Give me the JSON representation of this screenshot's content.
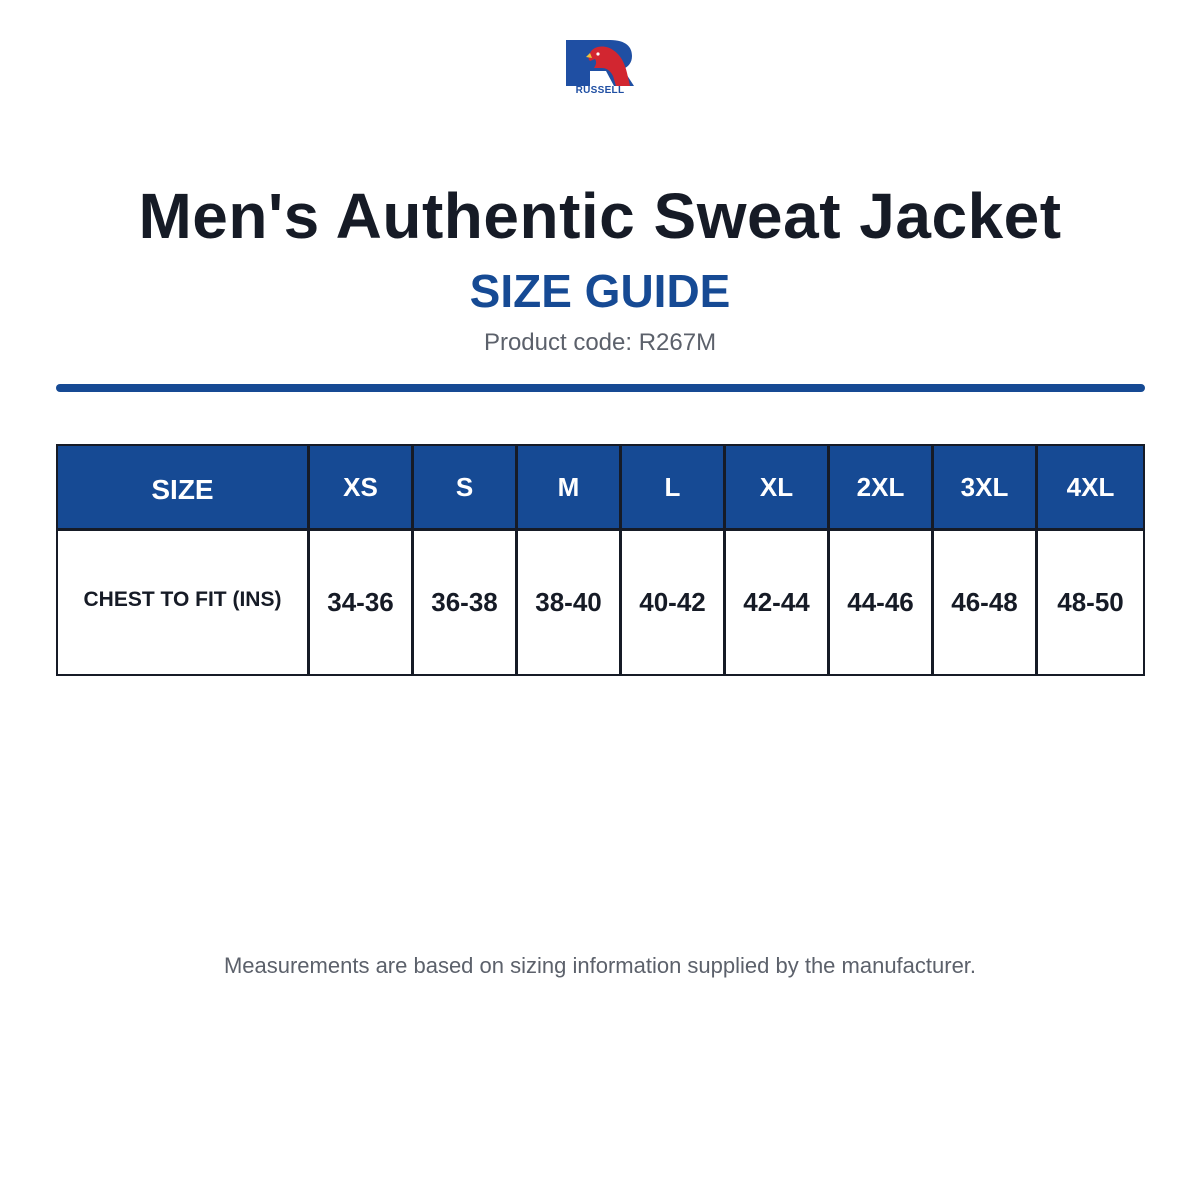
{
  "brand": {
    "name": "RUSSELL",
    "blue": "#1f4fa3",
    "red": "#d22630"
  },
  "header": {
    "title": "Men's Authentic Sweat Jacket",
    "subtitle": "SIZE GUIDE",
    "product_code": "Product code: R267M"
  },
  "table": {
    "header_label": "SIZE",
    "sizes": [
      "XS",
      "S",
      "M",
      "L",
      "XL",
      "2XL",
      "3XL",
      "4XL"
    ],
    "rows": [
      {
        "label": "CHEST TO FIT (INS)",
        "values": [
          "34-36",
          "36-38",
          "38-40",
          "40-42",
          "42-44",
          "44-46",
          "46-48",
          "48-50"
        ]
      }
    ]
  },
  "footer": {
    "note": "Measurements are based on sizing information supplied by the manufacturer."
  },
  "colors": {
    "accent": "#164a94",
    "text": "#161b26",
    "muted": "#5c616b"
  }
}
